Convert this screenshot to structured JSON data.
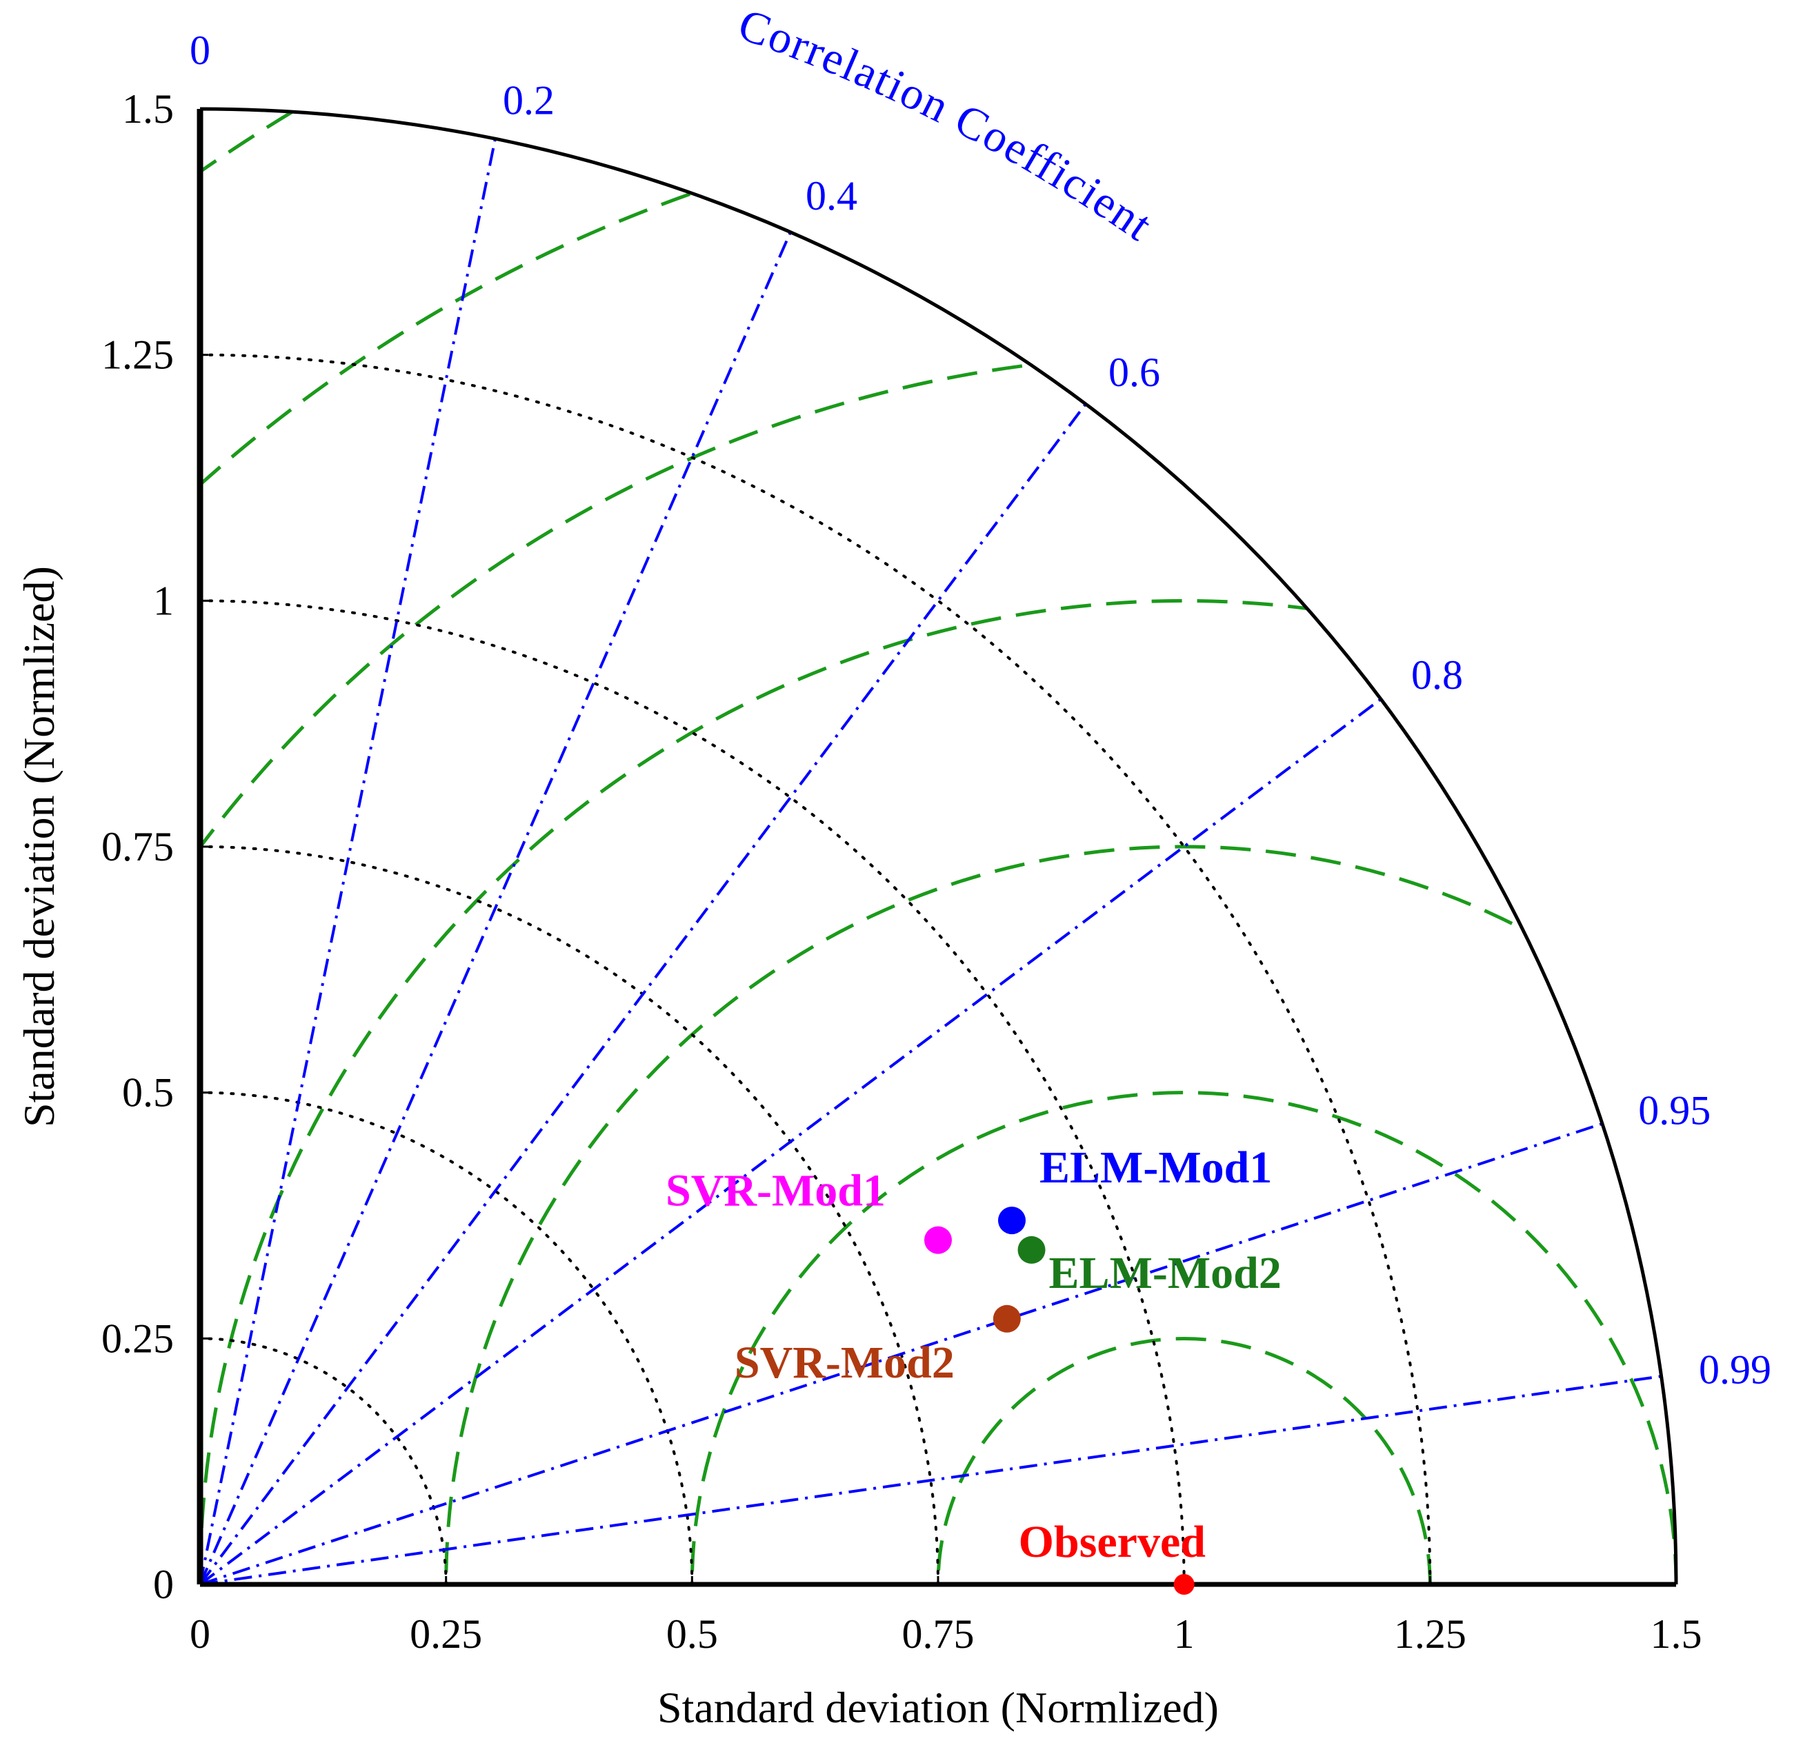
{
  "chart_data": {
    "type": "taylor-diagram",
    "title": "",
    "xlabel": "Standard deviation (Normlized)",
    "ylabel": "Standard deviation (Normlized)",
    "xlim": [
      0,
      1.5
    ],
    "ylim": [
      0,
      1.5
    ],
    "x_ticks": [
      "0",
      "0.25",
      "0.5",
      "0.75",
      "1",
      "1.25",
      "1.5"
    ],
    "y_ticks": [
      "0",
      "0.25",
      "0.5",
      "0.75",
      "1",
      "1.25",
      "1.5"
    ],
    "x_tick_values": [
      0,
      0.25,
      0.5,
      0.75,
      1,
      1.25,
      1.5
    ],
    "y_tick_values": [
      0,
      0.25,
      0.5,
      0.75,
      1,
      1.25,
      1.5
    ],
    "correlation_title": "Correlation Coefficient",
    "correlation_ticks": [
      "0",
      "0.2",
      "0.4",
      "0.6",
      "0.8",
      "0.95",
      "0.99"
    ],
    "correlation_values": [
      0,
      0.2,
      0.4,
      0.6,
      0.8,
      0.95,
      0.99
    ],
    "std_arcs": [
      0.25,
      0.5,
      0.75,
      1.0,
      1.25
    ],
    "rms_arcs": [
      0.25,
      0.5,
      0.75,
      1.0,
      1.25,
      1.5,
      1.75
    ],
    "reference_std": 1.0,
    "points": [
      {
        "name": "Observed",
        "x": 1.0,
        "y": 0.0,
        "color": "#ff0000"
      },
      {
        "name": "ELM-Mod1",
        "x": 0.825,
        "y": 0.37,
        "color": "#0000ff"
      },
      {
        "name": "ELM-Mod2",
        "x": 0.845,
        "y": 0.34,
        "color": "#1a7a1a"
      },
      {
        "name": "SVR-Mod1",
        "x": 0.75,
        "y": 0.35,
        "color": "#ff00ff"
      },
      {
        "name": "SVR-Mod2",
        "x": 0.82,
        "y": 0.27,
        "color": "#b03a10"
      }
    ],
    "colors": {
      "axis": "#000000",
      "correlation": "#0000ff",
      "rms": "#1a9a1a",
      "std_arc": "#000000"
    }
  }
}
